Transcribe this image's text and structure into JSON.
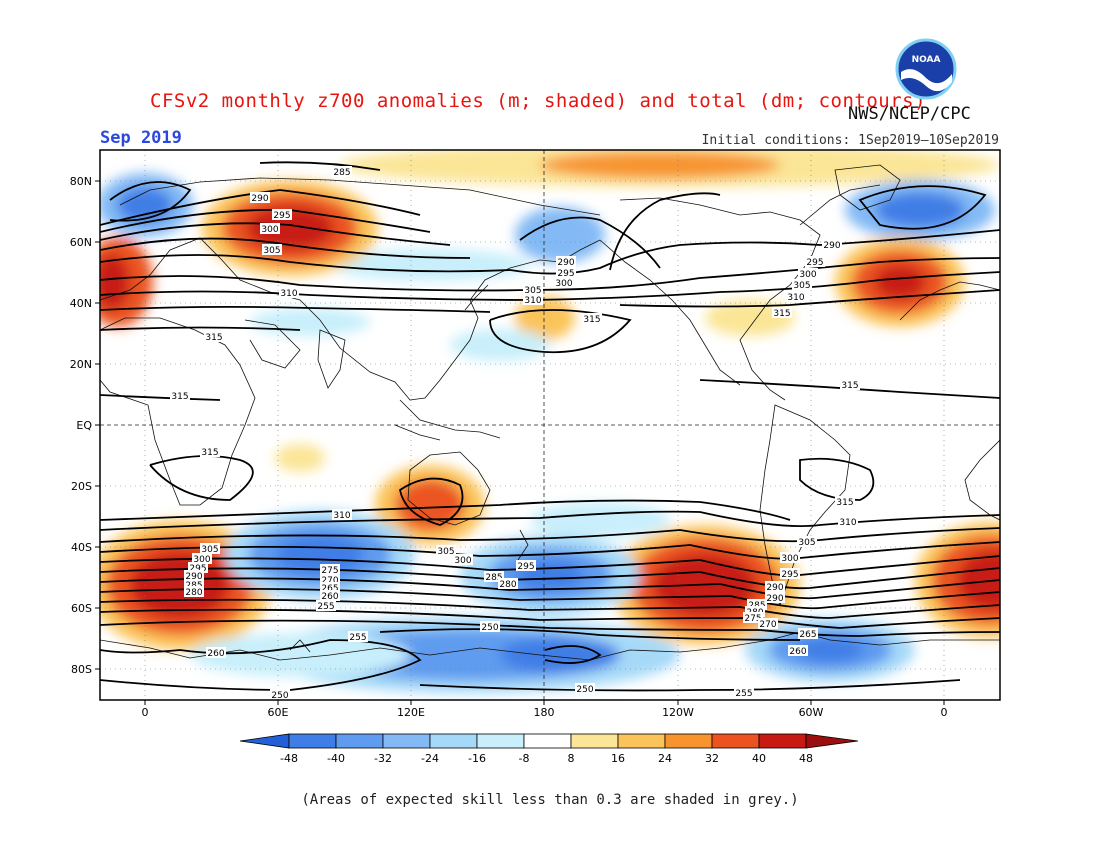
{
  "header": {
    "title": "CFSv2 monthly z700 anomalies (m; shaded) and total (dm; contours)",
    "agency": "NWS/NCEP/CPC",
    "month": "Sep 2019",
    "initial_conditions": "Initial conditions: 1Sep2019–10Sep2019",
    "logo_text": "NOAA"
  },
  "map": {
    "lat_labels": [
      "80N",
      "60N",
      "40N",
      "20N",
      "EQ",
      "20S",
      "40S",
      "60S",
      "80S"
    ],
    "lon_labels": [
      "0",
      "60E",
      "120E",
      "180",
      "120W",
      "60W",
      "0"
    ],
    "contour_labels": [
      "285",
      "290",
      "295",
      "300",
      "305",
      "310",
      "315",
      "315",
      "315",
      "315",
      "290",
      "295",
      "300",
      "305",
      "310",
      "315",
      "290",
      "295",
      "300",
      "305",
      "310",
      "315",
      "315",
      "310",
      "305",
      "300",
      "295",
      "290",
      "285",
      "280",
      "275",
      "270",
      "265",
      "260",
      "255",
      "250",
      "250",
      "255",
      "260",
      "305",
      "300",
      "295",
      "290",
      "285",
      "280",
      "310",
      "305",
      "300",
      "295",
      "290",
      "285",
      "280",
      "275",
      "270",
      "265",
      "260",
      "255",
      "250"
    ]
  },
  "colorbar": {
    "ticks": [
      "-48",
      "-40",
      "-32",
      "-24",
      "-16",
      "-8",
      "8",
      "16",
      "24",
      "32",
      "40",
      "48"
    ],
    "colors": [
      "#2360d8",
      "#3f7ee6",
      "#5f9bef",
      "#83baf5",
      "#a6d9f8",
      "#c8effb",
      "#ffffff",
      "#fbe596",
      "#fbc45a",
      "#f7942e",
      "#eb5420",
      "#c81a12",
      "#9c0f0f"
    ]
  },
  "footnote": "(Areas of expected skill less than 0.3 are shaded in grey.)"
}
